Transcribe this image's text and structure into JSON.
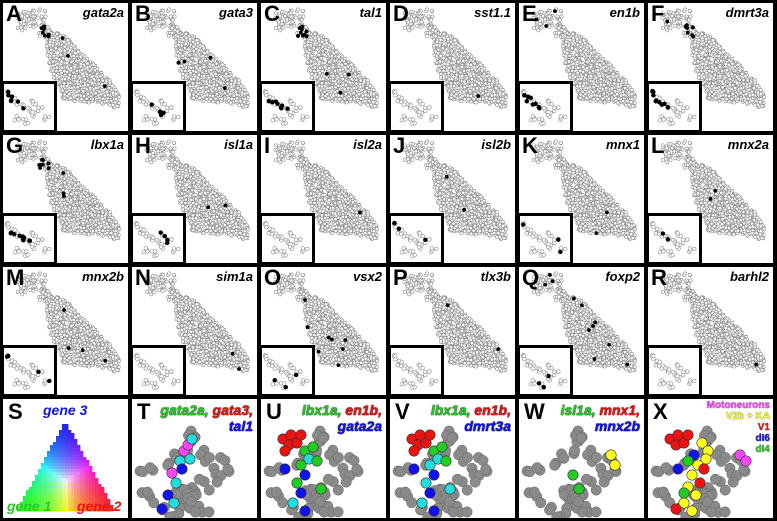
{
  "colors": {
    "green": "#22cc22",
    "red": "#ee1111",
    "blue": "#1111ee",
    "magenta": "#ff44ff",
    "yellow": "#ffff22",
    "cyan": "#22dddd",
    "grey": "#8a8a8a"
  },
  "panels": [
    {
      "letter": "A",
      "gene": "gata2a"
    },
    {
      "letter": "B",
      "gene": "gata3"
    },
    {
      "letter": "C",
      "gene": "tal1"
    },
    {
      "letter": "D",
      "gene": "sst1.1"
    },
    {
      "letter": "E",
      "gene": "en1b"
    },
    {
      "letter": "F",
      "gene": "dmrt3a"
    },
    {
      "letter": "G",
      "gene": "lbx1a"
    },
    {
      "letter": "H",
      "gene": "isl1a"
    },
    {
      "letter": "I",
      "gene": "isl2a"
    },
    {
      "letter": "J",
      "gene": "isl2b"
    },
    {
      "letter": "K",
      "gene": "mnx1"
    },
    {
      "letter": "L",
      "gene": "mnx2a"
    },
    {
      "letter": "M",
      "gene": "mnx2b"
    },
    {
      "letter": "N",
      "gene": "sim1a"
    },
    {
      "letter": "O",
      "gene": "vsx2"
    },
    {
      "letter": "P",
      "gene": "tlx3b"
    },
    {
      "letter": "Q",
      "gene": "foxp2"
    },
    {
      "letter": "R",
      "gene": "barhl2"
    }
  ],
  "S": {
    "letter": "S",
    "top": "gene 3",
    "left": "gene 1",
    "right": "gene 2"
  },
  "T": {
    "letter": "T",
    "g1": "gata2a",
    "g2": "gata3",
    "g3": "tal1"
  },
  "U": {
    "letter": "U",
    "g1": "lbx1a",
    "g2": "en1b",
    "g3": "gata2a"
  },
  "V": {
    "letter": "V",
    "g1": "lbx1a",
    "g2": "en1b",
    "g3": "dmrt3a"
  },
  "W": {
    "letter": "W",
    "g1": "isl1a",
    "g2": "mnx1",
    "g3": "mnx2b"
  },
  "X": {
    "letter": "X",
    "legend": [
      "Motoneurons",
      "V2b + KA",
      "V1",
      "dI6",
      "dI4"
    ]
  }
}
